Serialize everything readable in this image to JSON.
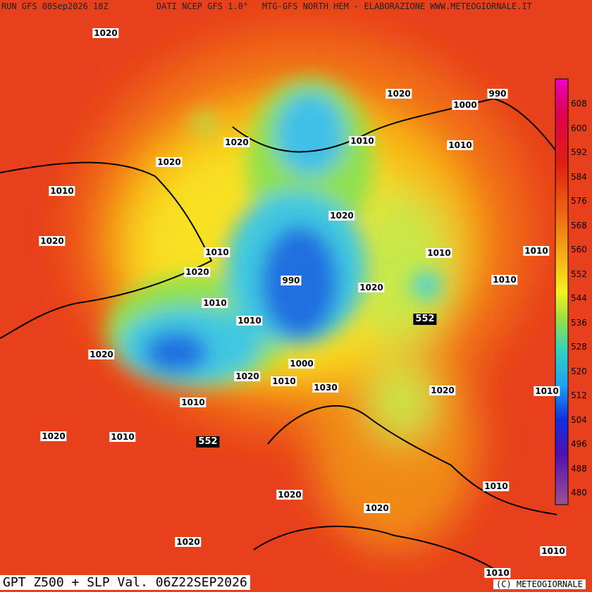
{
  "header": {
    "run": "RUN GFS 08Sep2026 18Z",
    "source": "DATI NCEP GFS 1.0°",
    "title": "MTG-GFS NORTH HEM - ELABORAZIONE WWW.METEOGIORNALE.IT"
  },
  "footer": {
    "title": "GPT Z500 + SLP Val. 06Z22SEP2026",
    "copyright": "(C) METEOGIORNALE"
  },
  "colorbar": {
    "ticks": [
      608,
      600,
      592,
      584,
      576,
      568,
      560,
      552,
      544,
      536,
      528,
      520,
      512,
      504,
      496,
      488,
      480
    ]
  },
  "pressure_labels": [
    1020,
    1020,
    990,
    1000,
    1020,
    1010,
    1010,
    1020,
    1010,
    1020,
    1020,
    1010,
    1010,
    1010,
    1020,
    990,
    1010,
    1020,
    1010,
    1010,
    1020,
    1000,
    1020,
    1010,
    1030,
    1020,
    1010,
    1010,
    1020,
    1010,
    1010,
    1020,
    1020,
    1020,
    1010,
    1010
  ],
  "height_labels": [
    552,
    552
  ]
}
